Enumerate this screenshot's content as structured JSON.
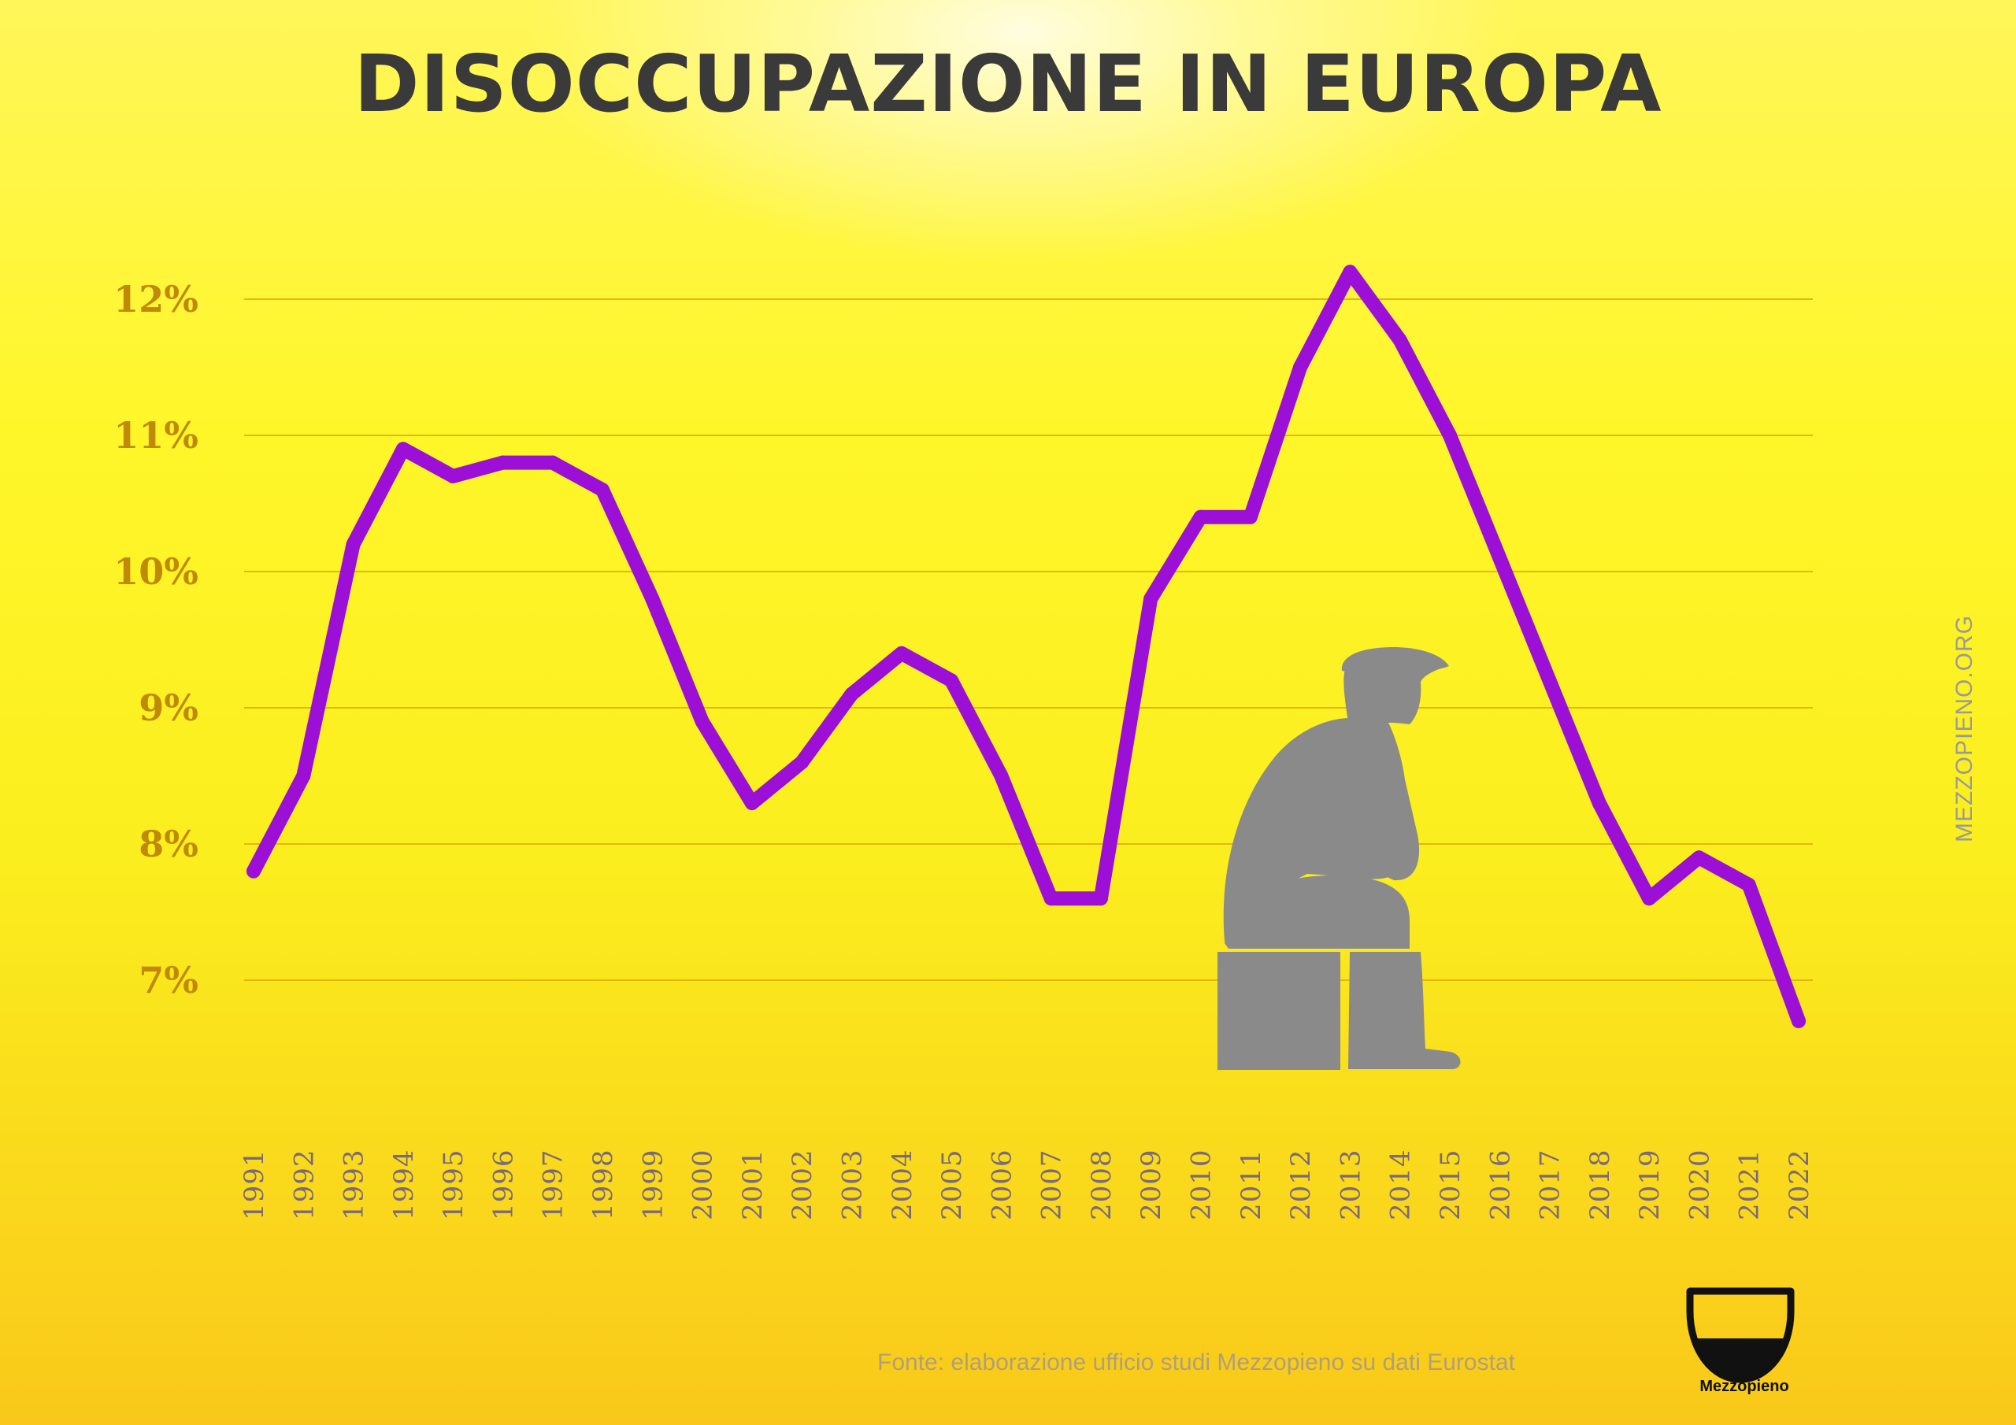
{
  "title": "DISOCCUPAZIONE IN EUROPA",
  "side_label": "MEZZOPIENO.ORG",
  "source": "Fonte: elaborazione ufficio studi Mezzopieno su dati Eurostat",
  "brand": {
    "name": "Mezzopieno",
    "icon": "half-full-glass-icon"
  },
  "illustration": {
    "icon": "thinking-man-sitting-icon",
    "color": "#8a8a8a"
  },
  "colors": {
    "line": "#9b0fd6",
    "gridline": "#e2b80e",
    "ytick": "#c08a08",
    "xtick": "#7a6a7a"
  },
  "chart_data": {
    "type": "line",
    "title": "DISOCCUPAZIONE IN EUROPA",
    "xlabel": "",
    "ylabel": "",
    "ylim": [
      6.5,
      12.5
    ],
    "grid": true,
    "yticks": [
      {
        "value": 12,
        "label": "12%"
      },
      {
        "value": 11,
        "label": "11%"
      },
      {
        "value": 10,
        "label": "10%"
      },
      {
        "value": 9,
        "label": "9%"
      },
      {
        "value": 8,
        "label": "8%"
      },
      {
        "value": 7,
        "label": "7%"
      }
    ],
    "categories": [
      "1991",
      "1992",
      "1993",
      "1994",
      "1995",
      "1996",
      "1997",
      "1998",
      "1999",
      "2000",
      "2001",
      "2002",
      "2003",
      "2004",
      "2005",
      "2006",
      "2007",
      "2008",
      "2009",
      "2010",
      "2011",
      "2012",
      "2013",
      "2014",
      "2015",
      "2016",
      "2017",
      "2018",
      "2019",
      "2020",
      "2021",
      "2022"
    ],
    "series": [
      {
        "values": [
          7.8,
          8.5,
          10.2,
          10.9,
          10.7,
          10.8,
          10.8,
          10.6,
          9.8,
          8.9,
          8.3,
          8.6,
          9.1,
          9.4,
          9.2,
          8.5,
          7.6,
          7.6,
          9.8,
          10.4,
          10.4,
          11.5,
          12.2,
          11.7,
          11.0,
          10.1,
          9.2,
          8.3,
          7.6,
          7.9,
          7.7,
          6.7
        ]
      }
    ]
  }
}
